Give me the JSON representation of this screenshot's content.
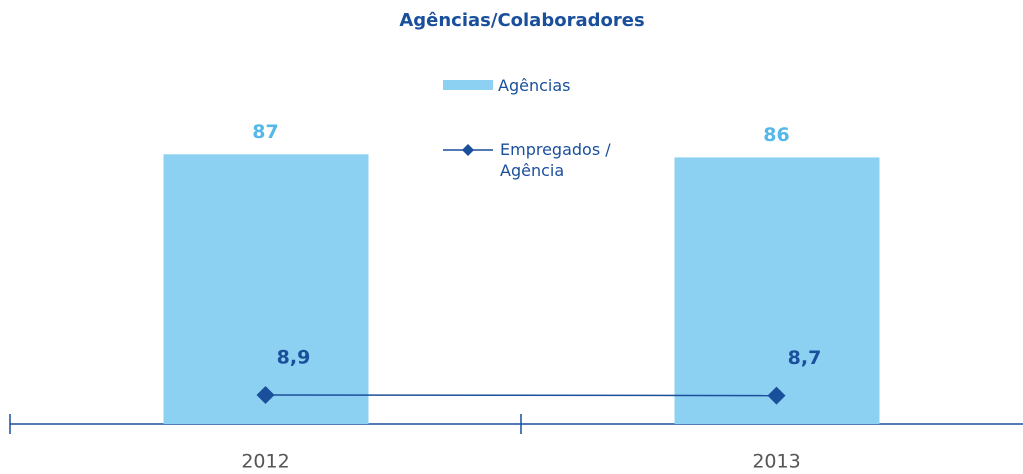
{
  "chart_data": {
    "type": "bar",
    "title": "Agências/Colaboradores",
    "categories": [
      "2012",
      "2013"
    ],
    "series": [
      {
        "name": "Agências",
        "type": "bar",
        "color": "#8dd1f2",
        "values": [
          87,
          86
        ]
      },
      {
        "name": "Empregados / Agência",
        "type": "line",
        "axis": "y2",
        "color": "#1a4f9c",
        "values": [
          8.9,
          8.7
        ],
        "value_labels": [
          "8,9",
          "8,7"
        ]
      }
    ],
    "ylim": [
      0,
      100
    ],
    "y2lim": [
      0,
      95
    ],
    "grid": false
  }
}
